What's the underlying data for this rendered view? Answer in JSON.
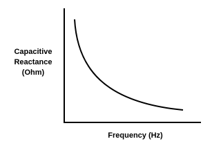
{
  "y_axis_label": [
    "Capacitive",
    "Reactance",
    "(Ohm)"
  ],
  "x_axis_label": "Frequency (Hz)"
}
